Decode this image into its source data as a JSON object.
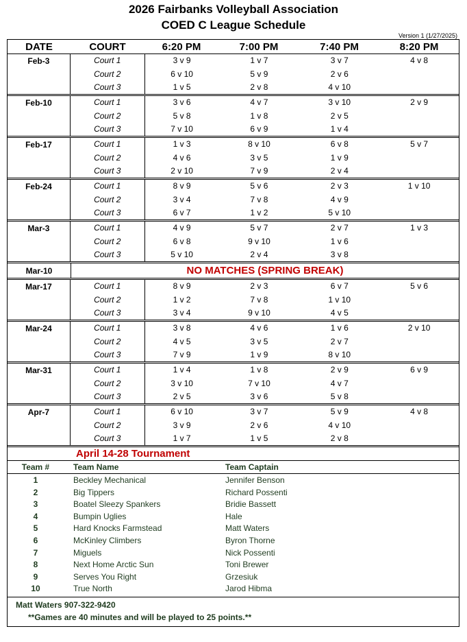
{
  "title": "2026 Fairbanks Volleyball Association",
  "subtitle": "COED C League Schedule",
  "version": "Version 1 (1/27/2025)",
  "headers": [
    "DATE",
    "COURT",
    "6:20 PM",
    "7:00 PM",
    "7:40 PM",
    "8:20 PM"
  ],
  "courts": [
    "Court 1",
    "Court 2",
    "Court 3"
  ],
  "weeks": [
    {
      "date": "Feb-3",
      "slots": [
        [
          "3 v 9",
          "1 v 7",
          "3 v 7",
          "4 v 8"
        ],
        [
          "6 v 10",
          "5 v 9",
          "2 v 6",
          ""
        ],
        [
          "1 v 5",
          "2 v 8",
          "4 v 10",
          ""
        ]
      ]
    },
    {
      "date": "Feb-10",
      "slots": [
        [
          "3 v 6",
          "4 v 7",
          "3 v 10",
          "2 v 9"
        ],
        [
          "5 v 8",
          "1 v 8",
          "2 v 5",
          ""
        ],
        [
          "7 v 10",
          "6 v 9",
          "1 v 4",
          ""
        ]
      ]
    },
    {
      "date": "Feb-17",
      "slots": [
        [
          "1 v 3",
          "8 v 10",
          "6 v 8",
          "5 v 7"
        ],
        [
          "4 v 6",
          "3 v 5",
          "1 v 9",
          ""
        ],
        [
          "2 v 10",
          "7 v 9",
          "2 v 4",
          ""
        ]
      ]
    },
    {
      "date": "Feb-24",
      "slots": [
        [
          "8 v 9",
          "5 v 6",
          "2 v 3",
          "1 v 10"
        ],
        [
          "3 v 4",
          "7 v 8",
          "4 v 9",
          ""
        ],
        [
          "6 v 7",
          "1 v 2",
          "5 v 10",
          ""
        ]
      ]
    },
    {
      "date": "Mar-3",
      "slots": [
        [
          "4 v 9",
          "5 v 7",
          "2 v 7",
          "1 v 3"
        ],
        [
          "6 v 8",
          "9 v 10",
          "1 v 6",
          ""
        ],
        [
          "5 v 10",
          "2 v 4",
          "3 v 8",
          ""
        ]
      ]
    },
    {
      "date": "Mar-10",
      "message": "NO MATCHES (SPRING BREAK)"
    },
    {
      "date": "Mar-17",
      "slots": [
        [
          "8 v 9",
          "2 v 3",
          "6 v 7",
          "5 v 6"
        ],
        [
          "1 v 2",
          "7 v 8",
          "1 v 10",
          ""
        ],
        [
          "3 v 4",
          "9 v 10",
          "4 v 5",
          ""
        ]
      ]
    },
    {
      "date": "Mar-24",
      "slots": [
        [
          "3 v 8",
          "4 v 6",
          "1 v 6",
          "2 v 10"
        ],
        [
          "4 v 5",
          "3 v 5",
          "2 v 7",
          ""
        ],
        [
          "7 v 9",
          "1 v 9",
          "8 v 10",
          ""
        ]
      ]
    },
    {
      "date": "Mar-31",
      "slots": [
        [
          "1 v 4",
          "1 v 8",
          "2 v 9",
          "6 v 9"
        ],
        [
          "3 v 10",
          "7 v 10",
          "4 v 7",
          ""
        ],
        [
          "2 v 5",
          "3 v 6",
          "5 v 8",
          ""
        ]
      ]
    },
    {
      "date": "Apr-7",
      "slots": [
        [
          "6 v 10",
          "3 v 7",
          "5 v 9",
          "4 v 8"
        ],
        [
          "3 v 9",
          "2 v 6",
          "4 v 10",
          ""
        ],
        [
          "1 v 7",
          "1 v 5",
          "2 v 8",
          ""
        ]
      ]
    }
  ],
  "tournament": "April 14-28 Tournament",
  "team_headers": [
    "Team #",
    "Team Name",
    "Team Captain"
  ],
  "teams": [
    {
      "num": "1",
      "name": "Beckley Mechanical",
      "captain": "Jennifer Benson"
    },
    {
      "num": "2",
      "name": "Big Tippers",
      "captain": "Richard Possenti"
    },
    {
      "num": "3",
      "name": "Boatel Sleezy Spankers",
      "captain": "Bridie Bassett"
    },
    {
      "num": "4",
      "name": "Bumpin Uglies",
      "captain": "Hale"
    },
    {
      "num": "5",
      "name": "Hard Knocks Farmstead",
      "captain": "Matt Waters"
    },
    {
      "num": "6",
      "name": "McKinley Climbers",
      "captain": "Byron Thorne"
    },
    {
      "num": "7",
      "name": "Miguels",
      "captain": "Nick Possenti"
    },
    {
      "num": "8",
      "name": "Next Home Arctic Sun",
      "captain": "Toni Brewer"
    },
    {
      "num": "9",
      "name": "Serves You Right",
      "captain": "Grzesiuk"
    },
    {
      "num": "10",
      "name": "True North",
      "captain": "Jarod Hibma"
    }
  ],
  "contact": "Matt Waters 907-322-9420",
  "note": "**Games are 40 minutes and will be played to 25 points.**",
  "colors": {
    "alert_red": "#c00000",
    "team_text": "#1f3b1f"
  }
}
